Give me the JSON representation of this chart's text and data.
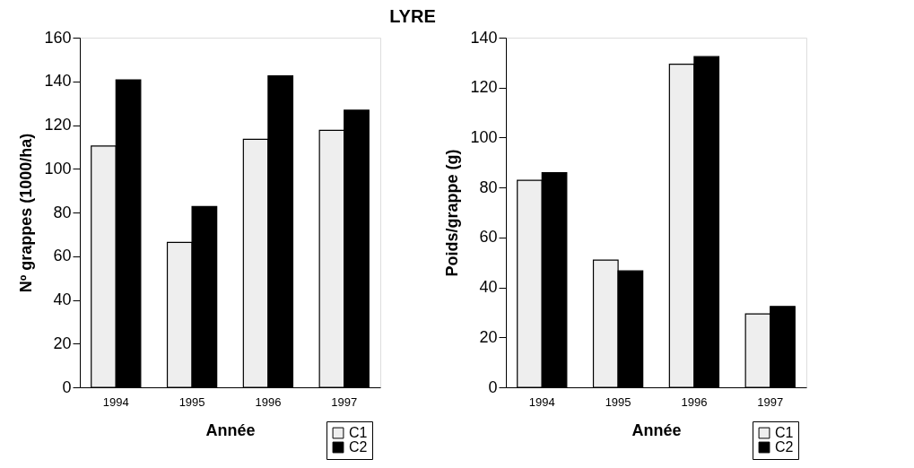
{
  "chart_data": [
    {
      "type": "bar",
      "title": "LYRE",
      "xlabel": "Année",
      "ylabel": "Nº grappes (1000/ha)",
      "categories": [
        "1994",
        "1995",
        "1996",
        "1997"
      ],
      "series": [
        {
          "name": "C1",
          "color": "#eeeeee",
          "values": [
            110.4,
            66.3,
            113.5,
            117.6
          ]
        },
        {
          "name": "C2",
          "color": "#000000",
          "values": [
            140.7,
            82.7,
            142.5,
            126.8
          ]
        }
      ],
      "ylim": [
        0,
        160
      ],
      "yticks": [
        0,
        20,
        40,
        60,
        80,
        100,
        120,
        140,
        160
      ],
      "grid": false,
      "legend": "bottom right"
    },
    {
      "type": "bar",
      "xlabel": "Année",
      "ylabel": "Poids/grappe (g)",
      "categories": [
        "1994",
        "1995",
        "1996",
        "1997"
      ],
      "series": [
        {
          "name": "C1",
          "color": "#eeeeee",
          "values": [
            82.9,
            50.9,
            129.4,
            29.4
          ]
        },
        {
          "name": "C2",
          "color": "#000000",
          "values": [
            85.9,
            46.6,
            132.4,
            32.4
          ]
        }
      ],
      "ylim": [
        0,
        140
      ],
      "yticks": [
        0,
        20,
        40,
        60,
        80,
        100,
        120,
        140
      ],
      "grid": false,
      "legend": "bottom right"
    }
  ]
}
